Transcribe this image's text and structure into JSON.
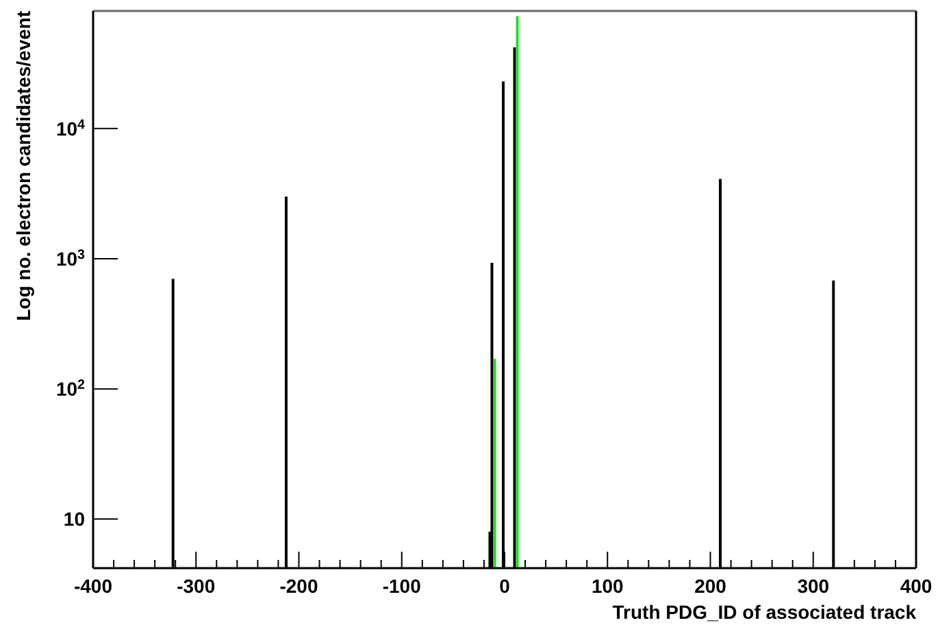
{
  "chart_data": {
    "type": "bar",
    "xlabel": "Truth PDG_ID of associated track",
    "ylabel": "Log no. electron candidates/event",
    "log": "y",
    "grid": false,
    "xlim": [
      -400,
      400
    ],
    "xticks": [
      -400,
      {
        "value": -380,
        "label": null
      },
      {
        "value": -360,
        "label": null
      },
      {
        "value": -340,
        "label": null
      },
      {
        "value": -320,
        "label": null
      },
      -300,
      {
        "value": -280,
        "label": null
      },
      {
        "value": -260,
        "label": null
      },
      {
        "value": -240,
        "label": null
      },
      {
        "value": -220,
        "label": null
      },
      -200,
      {
        "value": -180,
        "label": null
      },
      {
        "value": -160,
        "label": null
      },
      {
        "value": -140,
        "label": null
      },
      {
        "value": -120,
        "label": null
      },
      -100,
      {
        "value": -80,
        "label": null
      },
      {
        "value": -60,
        "label": null
      },
      {
        "value": -40,
        "label": null
      },
      {
        "value": -20,
        "label": null
      },
      0,
      {
        "value": 20,
        "label": null
      },
      {
        "value": 40,
        "label": null
      },
      {
        "value": 60,
        "label": null
      },
      {
        "value": 80,
        "label": null
      },
      100,
      {
        "value": 120,
        "label": null
      },
      {
        "value": 140,
        "label": null
      },
      {
        "value": 160,
        "label": null
      },
      {
        "value": 180,
        "label": null
      },
      200,
      {
        "value": 220,
        "label": null
      },
      {
        "value": 240,
        "label": null
      },
      {
        "value": 260,
        "label": null
      },
      {
        "value": 280,
        "label": null
      },
      300,
      {
        "value": 320,
        "label": null
      },
      {
        "value": 340,
        "label": null
      },
      {
        "value": 360,
        "label": null
      },
      {
        "value": 380,
        "label": null
      },
      400
    ],
    "ylim": [
      4.2,
      80000
    ],
    "yticks": [
      10,
      {
        "value": 100,
        "label": "10$^{2}$"
      },
      {
        "value": 1000,
        "label": "10$^{3}$"
      },
      {
        "value": 10000,
        "label": "10$^{4}$"
      }
    ],
    "series": [
      {
        "color": "#000000",
        "x": [
          -321,
          -211,
          -13,
          -11,
          0,
          11,
          211,
          321
        ],
        "values": [
          700,
          3000,
          8,
          930,
          23000,
          42000,
          4100,
          680
        ]
      },
      {
        "color": "#22dd22",
        "x": [
          -11,
          11
        ],
        "values": [
          170,
          73000
        ]
      }
    ]
  }
}
